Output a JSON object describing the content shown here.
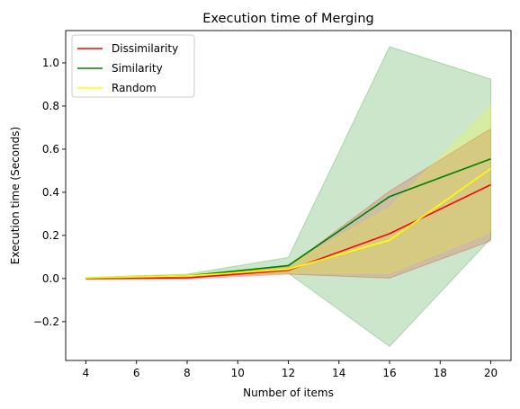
{
  "chart_data": {
    "type": "line",
    "title": "Execution time of Merging",
    "xlabel": "Number of items",
    "ylabel": "Execution time (Seconds)",
    "x": [
      4,
      8,
      12,
      16,
      20
    ],
    "xlim": [
      3.2,
      20.8
    ],
    "ylim": [
      -0.38,
      1.15
    ],
    "xticks": [
      4,
      6,
      8,
      10,
      12,
      14,
      16,
      18,
      20
    ],
    "xtick_labels": [
      "4",
      "6",
      "8",
      "10",
      "12",
      "14",
      "16",
      "18",
      "20"
    ],
    "yticks": [
      -0.2,
      0.0,
      0.2,
      0.4,
      0.6,
      0.8,
      1.0
    ],
    "ytick_labels": [
      "−0.2",
      "0.0",
      "0.2",
      "0.4",
      "0.6",
      "0.8",
      "1.0"
    ],
    "grid": false,
    "legend_position": "top-left",
    "series": [
      {
        "name": "Dissimilarity",
        "color": "#ff0000",
        "values": [
          0.0,
          0.003,
          0.038,
          0.208,
          0.435
        ],
        "band_low": [
          -0.002,
          -0.002,
          0.02,
          0.002,
          0.175
        ],
        "band_high": [
          0.002,
          0.008,
          0.056,
          0.405,
          0.695
        ]
      },
      {
        "name": "Similarity",
        "color": "#008000",
        "values": [
          0.002,
          0.012,
          0.06,
          0.38,
          0.555
        ],
        "band_low": [
          0.0,
          0.005,
          0.025,
          -0.315,
          0.185
        ],
        "band_high": [
          0.005,
          0.02,
          0.098,
          1.075,
          0.925
        ]
      },
      {
        "name": "Random",
        "color": "#ffff00",
        "values": [
          0.003,
          0.012,
          0.043,
          0.178,
          0.51
        ],
        "band_low": [
          0.0,
          0.006,
          0.025,
          0.025,
          0.215
        ],
        "band_high": [
          0.006,
          0.018,
          0.06,
          0.33,
          0.8
        ]
      }
    ]
  }
}
